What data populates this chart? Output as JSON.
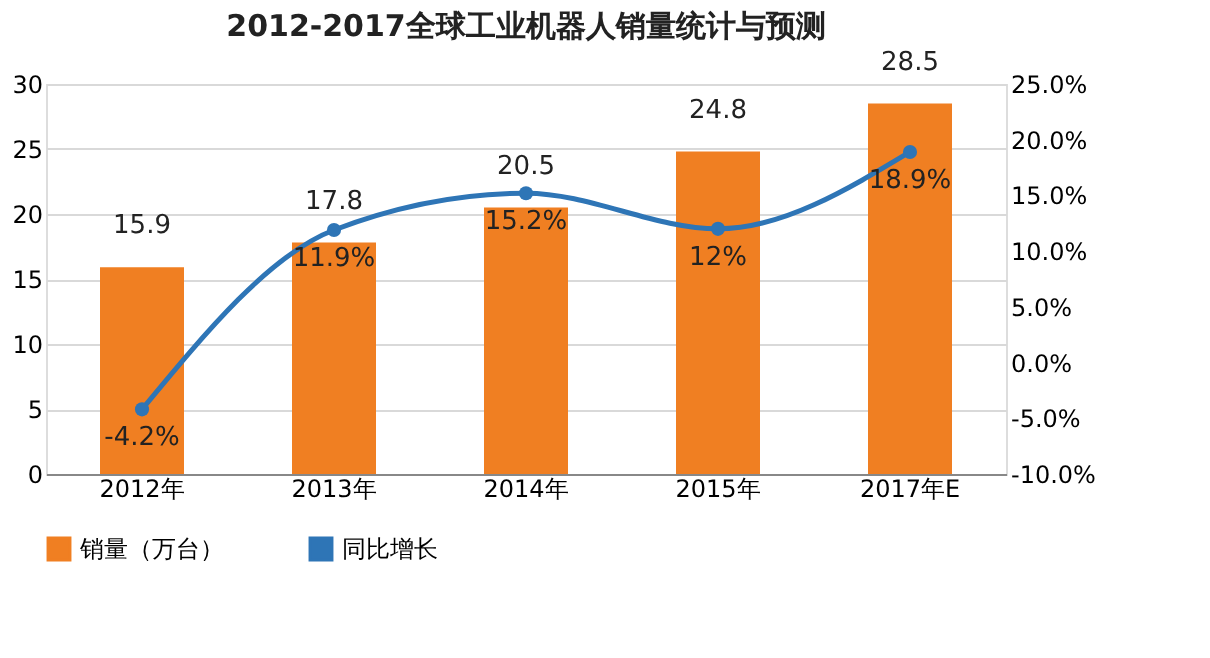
{
  "chart_data": {
    "type": "bar",
    "title": "2012-2017全球工业机器人销量统计与预测",
    "categories": [
      "2012年",
      "2013年",
      "2014年",
      "2015年",
      "2017年E"
    ],
    "series": [
      {
        "name": "销量（万台）",
        "color": "#f07f22",
        "values": [
          15.9,
          17.8,
          20.5,
          24.8,
          28.5
        ],
        "value_labels": [
          "15.9",
          "17.8",
          "20.5",
          "24.8",
          "28.5"
        ]
      },
      {
        "name": "同比增长",
        "type": "line",
        "axis": "y2",
        "color": "#2e75b6",
        "values": [
          -4.2,
          11.9,
          15.2,
          12,
          18.9
        ],
        "value_labels": [
          "-4.2%",
          "11.9%",
          "15.2%",
          "12%",
          "18.9%"
        ],
        "marker": "circle"
      }
    ],
    "ylim": [
      0,
      30
    ],
    "yticks": [
      0,
      5,
      10,
      15,
      20,
      25,
      30
    ],
    "y2lim": [
      -10,
      25
    ],
    "y2ticks": [
      {
        "value": -10,
        "label": "-10.0%"
      },
      {
        "value": -5,
        "label": "-5.0%"
      },
      {
        "value": 0,
        "label": "0.0%"
      },
      {
        "value": 5,
        "label": "5.0%"
      },
      {
        "value": 10,
        "label": "10.0%"
      },
      {
        "value": 15,
        "label": "15.0%"
      },
      {
        "value": 20,
        "label": "20.0%"
      },
      {
        "value": 25,
        "label": "25.0%"
      }
    ],
    "grid": "y",
    "legend": "bottom"
  }
}
